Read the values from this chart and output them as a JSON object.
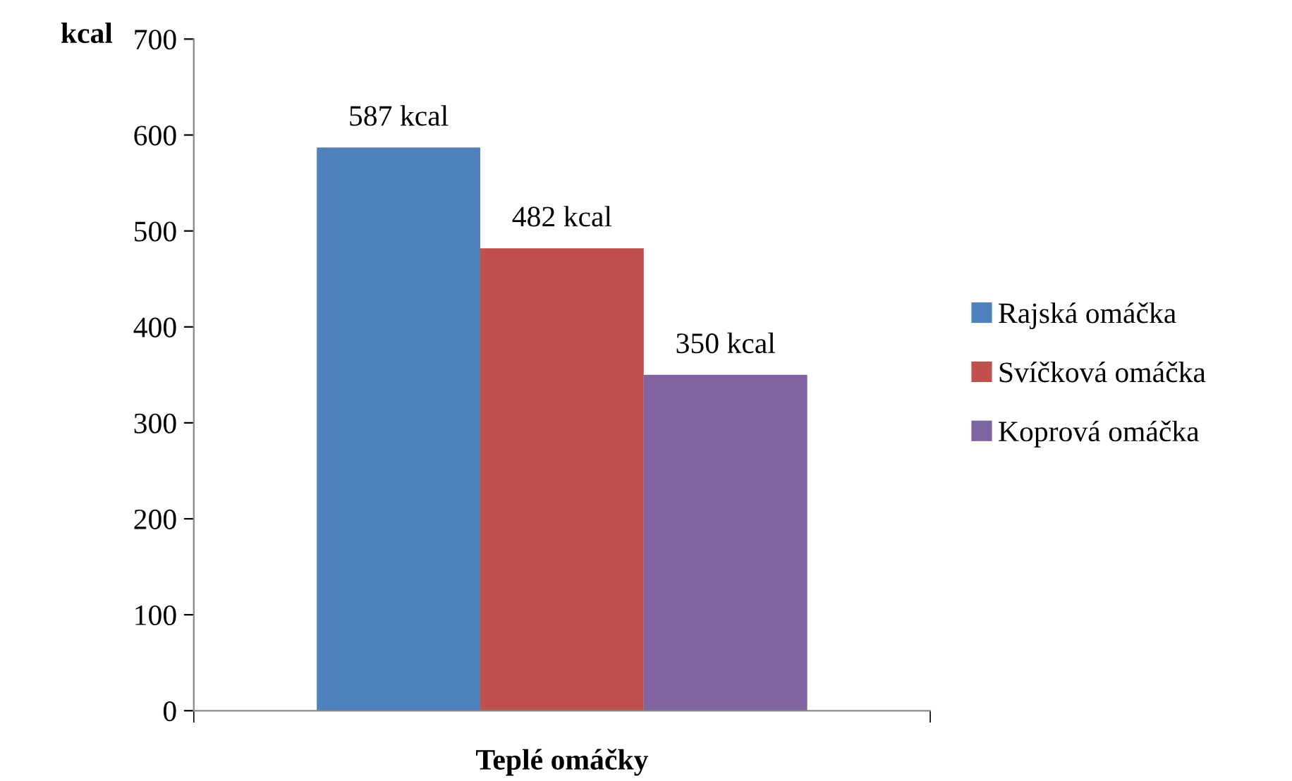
{
  "chart_data": {
    "type": "bar",
    "ylabel": "kcal",
    "xlabel": "Teplé omáčky",
    "categories": [
      null
    ],
    "series": [
      {
        "name": "Rajská omáčka",
        "color": "#4f81bd",
        "values": [
          587
        ],
        "value_labels": [
          "587 kcal"
        ]
      },
      {
        "name": "Svíčková omáčka",
        "color": "#c0504d",
        "values": [
          482
        ],
        "value_labels": [
          "482 kcal"
        ]
      },
      {
        "name": "Koprová omáčka",
        "color": "#8064a2",
        "values": [
          350
        ],
        "value_labels": [
          "350 kcal"
        ]
      }
    ],
    "ylim": [
      0,
      700
    ],
    "yticks": [
      0,
      100,
      200,
      300,
      400,
      500,
      600,
      700
    ],
    "grid": false,
    "legend": "right"
  }
}
